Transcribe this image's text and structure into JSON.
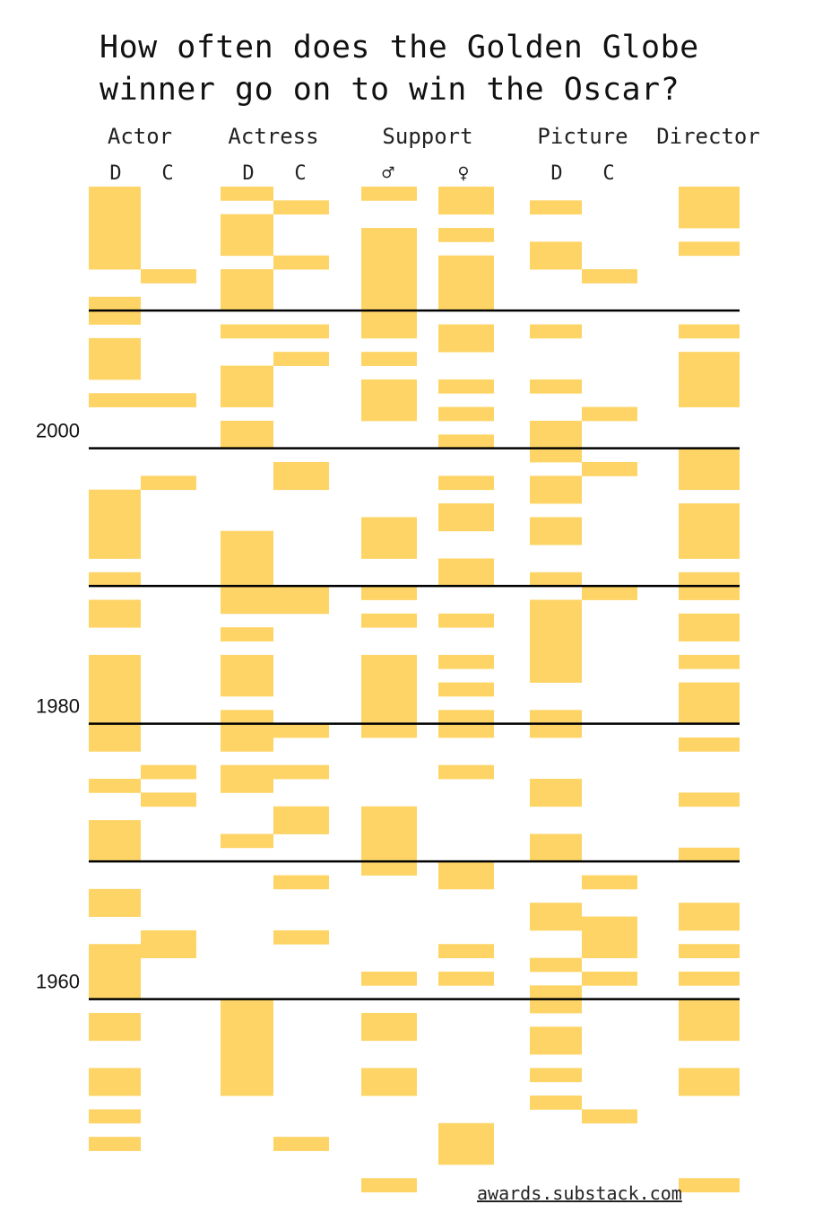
{
  "title": {
    "line1": "How often does the Golden Globe",
    "line2": "winner go on to win the Oscar?"
  },
  "source": "awards.substack.com",
  "chart_data": {
    "type": "heatmap",
    "title": "How often does the Golden Globe winner go on to win the Oscar?",
    "description_of_encoding": "Each filled cell marks a ceremony year in which the Golden Globe winner in that column also won the Oscar",
    "bar_color": "#FDD465",
    "year_range": [
      1944,
      2019
    ],
    "y_ticks": [
      1960,
      1980,
      2000
    ],
    "reference_line_years": [
      1960,
      1970,
      1980,
      1990,
      2000,
      2010
    ],
    "categories": [
      {
        "name": "Actor",
        "subcolumns": [
          "D",
          "C"
        ]
      },
      {
        "name": "Actress",
        "subcolumns": [
          "D",
          "C"
        ]
      },
      {
        "name": "Support",
        "subcolumns": [
          "♂",
          "♀"
        ]
      },
      {
        "name": "Picture",
        "subcolumns": [
          "D",
          "C"
        ]
      },
      {
        "name": "Director",
        "subcolumns": [
          ""
        ]
      }
    ],
    "series": [
      {
        "name": "Actor D",
        "years": [
          2019,
          2018,
          2017,
          2016,
          2015,
          2014,
          2011,
          2010,
          2008,
          2007,
          2006,
          2004,
          1997,
          1996,
          1995,
          1994,
          1993,
          1991,
          1989,
          1988,
          1985,
          1984,
          1983,
          1982,
          1981,
          1980,
          1979,
          1976,
          1973,
          1972,
          1971,
          1968,
          1967,
          1964,
          1963,
          1962,
          1961,
          1959,
          1958,
          1955,
          1954,
          1952,
          1950
        ]
      },
      {
        "name": "Actor C",
        "years": [
          2013,
          2004,
          1998,
          1977,
          1975,
          1965,
          1964
        ]
      },
      {
        "name": "Actress D",
        "years": [
          2019,
          2017,
          2016,
          2015,
          2013,
          2012,
          2011,
          2009,
          2006,
          2005,
          2004,
          2002,
          2001,
          1994,
          1993,
          1992,
          1991,
          1990,
          1989,
          1987,
          1985,
          1984,
          1983,
          1981,
          1980,
          1979,
          1977,
          1976,
          1972,
          1960,
          1959,
          1958,
          1957,
          1956,
          1955,
          1954
        ]
      },
      {
        "name": "Actress C",
        "years": [
          2018,
          2014,
          2009,
          2007,
          1999,
          1998,
          1990,
          1989,
          1980,
          1977,
          1974,
          1973,
          1969,
          1965,
          1950
        ]
      },
      {
        "name": "Support ♂",
        "years": [
          2019,
          2016,
          2015,
          2014,
          2013,
          2012,
          2011,
          2010,
          2009,
          2007,
          2005,
          2004,
          2003,
          1995,
          1994,
          1993,
          1990,
          1988,
          1985,
          1984,
          1983,
          1982,
          1981,
          1980,
          1974,
          1973,
          1972,
          1971,
          1970,
          1962,
          1959,
          1958,
          1955,
          1954,
          1947
        ]
      },
      {
        "name": "Support ♀",
        "years": [
          2019,
          2018,
          2016,
          2014,
          2013,
          2012,
          2011,
          2009,
          2008,
          2005,
          2003,
          2001,
          1998,
          1996,
          1995,
          1992,
          1991,
          1988,
          1985,
          1983,
          1981,
          1980,
          1977,
          1970,
          1969,
          1964,
          1962,
          1951,
          1950,
          1949
        ]
      },
      {
        "name": "Picture D",
        "years": [
          2018,
          2015,
          2014,
          2009,
          2005,
          2002,
          2001,
          2000,
          1998,
          1997,
          1995,
          1994,
          1991,
          1989,
          1988,
          1987,
          1986,
          1985,
          1984,
          1981,
          1980,
          1976,
          1975,
          1972,
          1971,
          1967,
          1966,
          1963,
          1961,
          1960,
          1958,
          1957,
          1955,
          1953
        ]
      },
      {
        "name": "Picture C",
        "years": [
          2013,
          2003,
          1999,
          1990,
          1969,
          1966,
          1965,
          1964,
          1962,
          1952
        ]
      },
      {
        "name": "Director",
        "years": [
          2019,
          2018,
          2017,
          2015,
          2009,
          2007,
          2006,
          2005,
          2004,
          2000,
          1999,
          1998,
          1996,
          1995,
          1994,
          1993,
          1991,
          1990,
          1988,
          1987,
          1985,
          1983,
          1982,
          1981,
          1979,
          1975,
          1971,
          1967,
          1966,
          1964,
          1962,
          1960,
          1959,
          1958,
          1955,
          1954,
          1947
        ]
      }
    ]
  }
}
